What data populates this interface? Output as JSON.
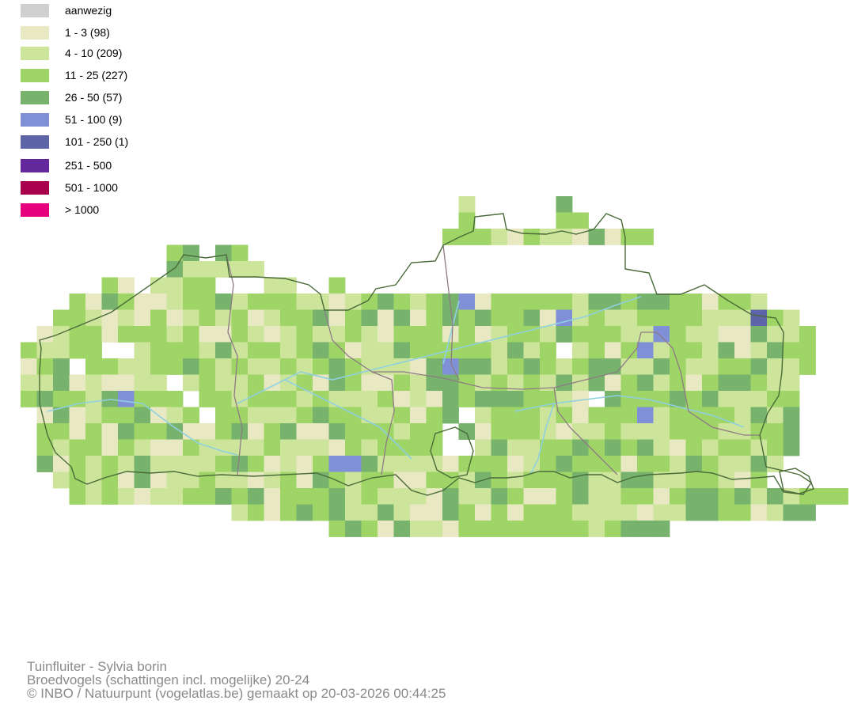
{
  "legend": {
    "items": [
      {
        "label": "aanwezig",
        "color": "#cfcfcf"
      },
      {
        "label": "1 - 3 (98)",
        "color": "#e8e8c2"
      },
      {
        "label": "4 - 10 (209)",
        "color": "#cde59a"
      },
      {
        "label": "11 - 25 (227)",
        "color": "#9fd466"
      },
      {
        "label": "26 - 50 (57)",
        "color": "#78b36e"
      },
      {
        "label": "51 - 100 (9)",
        "color": "#7f90d6"
      },
      {
        "label": "101 - 250 (1)",
        "color": "#5e64a8"
      },
      {
        "label": "251 - 500",
        "color": "#62289c"
      },
      {
        "label": "501 - 1000",
        "color": "#a8004c"
      },
      {
        "label": "> 1000",
        "color": "#e6007e"
      }
    ]
  },
  "map": {
    "border_color": "#4a6b3a",
    "province_border_color": "#8e7a86",
    "river_color": "#8fd0e0"
  },
  "footer": {
    "species": "Tuinfluiter - Sylvia borin",
    "dataset": "Broedvogels (schattingen incl. mogelijke) 20-24",
    "credit": "© INBO / Natuurpunt (vogelatlas.be) gemaakt op 20-03-2026 00:44:25"
  }
}
